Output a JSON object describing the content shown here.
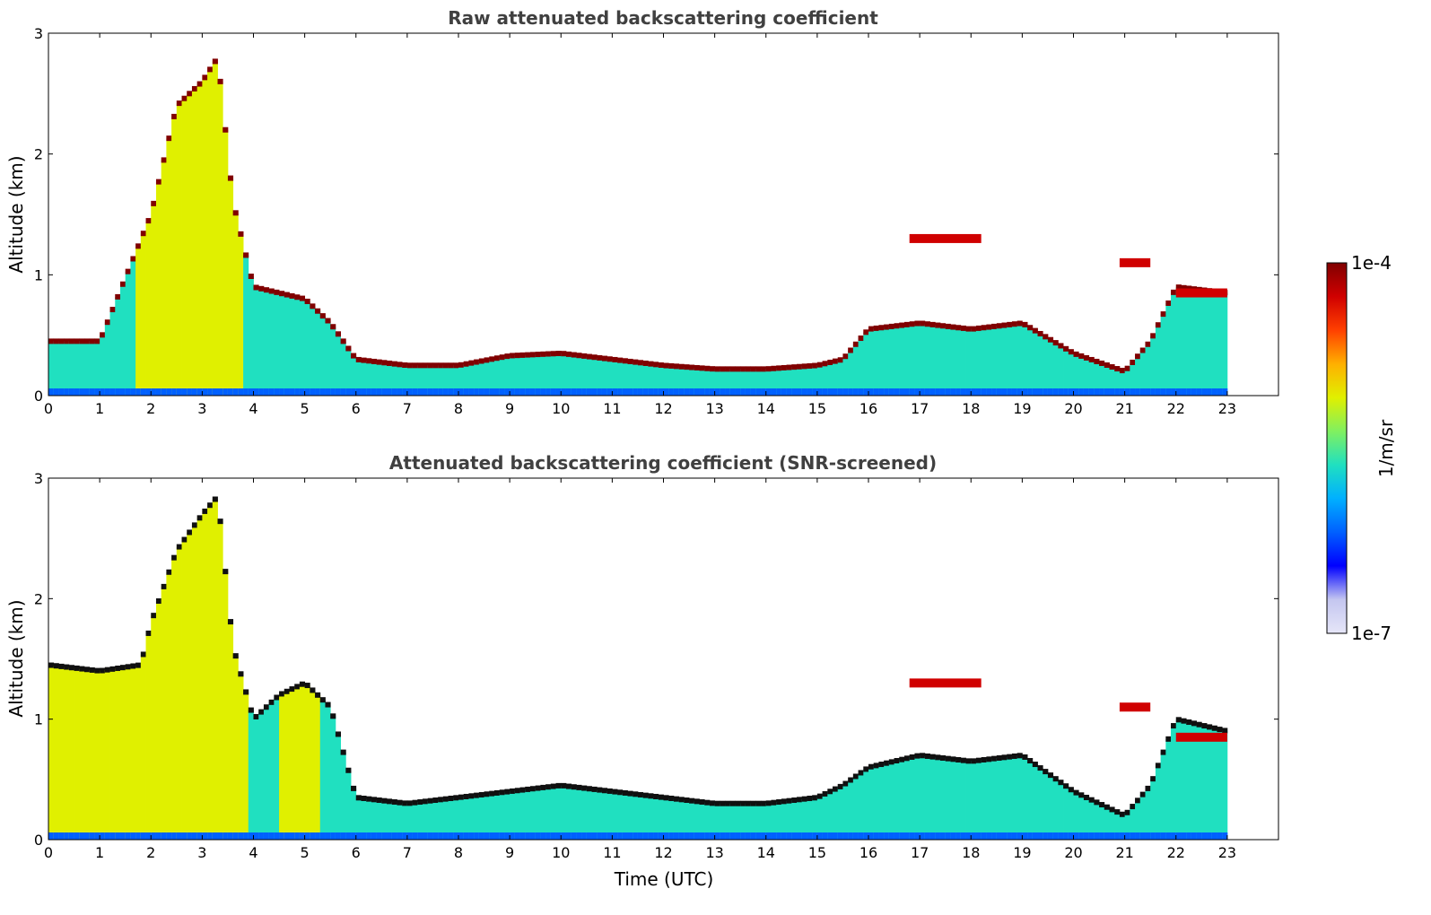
{
  "figure": {
    "ylabel": "Altitude (km)",
    "xlabel": "Time (UTC)"
  },
  "colorbar": {
    "label": "1/m/sr",
    "max_label": "1e-4",
    "min_label": "1e-7",
    "stops": [
      "#e6e6f8",
      "#c4c6f0",
      "#0000ff",
      "#0060ff",
      "#00b0ff",
      "#20e0c0",
      "#80f060",
      "#e0f000",
      "#ffb000",
      "#ff4000",
      "#d00000",
      "#800000"
    ]
  },
  "chart_data": [
    {
      "type": "heatmap",
      "title": "Raw attenuated backscattering coefficient",
      "xlabel": "",
      "ylabel": "Altitude (km)",
      "xlim": [
        0,
        24
      ],
      "ylim": [
        0,
        3
      ],
      "xticks": [
        0,
        1,
        2,
        3,
        4,
        5,
        6,
        7,
        8,
        9,
        10,
        11,
        12,
        13,
        14,
        15,
        16,
        17,
        18,
        19,
        20,
        21,
        22,
        23
      ],
      "yticks": [
        0,
        1,
        2,
        3
      ],
      "data_extent_x": [
        0,
        23
      ],
      "color_scale": {
        "min": "1e-7",
        "max": "1e-4",
        "unit": "1/m/sr"
      },
      "aerosol_layer_top_km": [
        [
          0,
          0.45
        ],
        [
          1,
          0.45
        ],
        [
          2,
          1.5
        ],
        [
          2.5,
          2.4
        ],
        [
          3,
          2.6
        ],
        [
          3.3,
          2.8
        ],
        [
          3.6,
          1.6
        ],
        [
          4,
          0.9
        ],
        [
          4.5,
          0.85
        ],
        [
          5,
          0.8
        ],
        [
          5.5,
          0.6
        ],
        [
          6,
          0.3
        ],
        [
          7,
          0.25
        ],
        [
          8,
          0.25
        ],
        [
          9,
          0.33
        ],
        [
          10,
          0.35
        ],
        [
          11,
          0.3
        ],
        [
          12,
          0.25
        ],
        [
          13,
          0.22
        ],
        [
          14,
          0.22
        ],
        [
          15,
          0.25
        ],
        [
          15.5,
          0.3
        ],
        [
          16,
          0.55
        ],
        [
          17,
          0.6
        ],
        [
          18,
          0.55
        ],
        [
          19,
          0.6
        ],
        [
          20,
          0.35
        ],
        [
          21,
          0.2
        ],
        [
          21.5,
          0.45
        ],
        [
          22,
          0.9
        ],
        [
          23,
          0.85
        ]
      ],
      "cloud_features": [
        {
          "t_start": 16.8,
          "t_end": 18.2,
          "alt_km": 1.3
        },
        {
          "t_start": 20.9,
          "t_end": 21.5,
          "alt_km": 1.1
        },
        {
          "t_start": 22.0,
          "t_end": 23.0,
          "alt_km": 0.85
        }
      ]
    },
    {
      "type": "heatmap",
      "title": "Attenuated backscattering coefficient (SNR-screened)",
      "xlabel": "Time (UTC)",
      "ylabel": "Altitude (km)",
      "xlim": [
        0,
        24
      ],
      "ylim": [
        0,
        3
      ],
      "xticks": [
        0,
        1,
        2,
        3,
        4,
        5,
        6,
        7,
        8,
        9,
        10,
        11,
        12,
        13,
        14,
        15,
        16,
        17,
        18,
        19,
        20,
        21,
        22,
        23
      ],
      "yticks": [
        0,
        1,
        2,
        3
      ],
      "data_extent_x": [
        0,
        23
      ],
      "color_scale": {
        "min": "1e-7",
        "max": "1e-4",
        "unit": "1/m/sr"
      },
      "aerosol_layer_top_km": [
        [
          0,
          1.45
        ],
        [
          1,
          1.4
        ],
        [
          1.8,
          1.45
        ],
        [
          2,
          1.8
        ],
        [
          2.5,
          2.4
        ],
        [
          3,
          2.7
        ],
        [
          3.3,
          2.85
        ],
        [
          3.6,
          1.6
        ],
        [
          4,
          1.0
        ],
        [
          4.5,
          1.2
        ],
        [
          5,
          1.3
        ],
        [
          5.5,
          1.1
        ],
        [
          6,
          0.35
        ],
        [
          7,
          0.3
        ],
        [
          8,
          0.35
        ],
        [
          9,
          0.4
        ],
        [
          10,
          0.45
        ],
        [
          11,
          0.4
        ],
        [
          12,
          0.35
        ],
        [
          13,
          0.3
        ],
        [
          14,
          0.3
        ],
        [
          15,
          0.35
        ],
        [
          15.5,
          0.45
        ],
        [
          16,
          0.6
        ],
        [
          17,
          0.7
        ],
        [
          18,
          0.65
        ],
        [
          19,
          0.7
        ],
        [
          20,
          0.4
        ],
        [
          21,
          0.2
        ],
        [
          21.5,
          0.45
        ],
        [
          22,
          1.0
        ],
        [
          23,
          0.9
        ]
      ],
      "cloud_features": [
        {
          "t_start": 16.8,
          "t_end": 18.2,
          "alt_km": 1.3
        },
        {
          "t_start": 20.9,
          "t_end": 21.5,
          "alt_km": 1.1
        },
        {
          "t_start": 22.0,
          "t_end": 23.0,
          "alt_km": 0.85
        }
      ]
    }
  ]
}
